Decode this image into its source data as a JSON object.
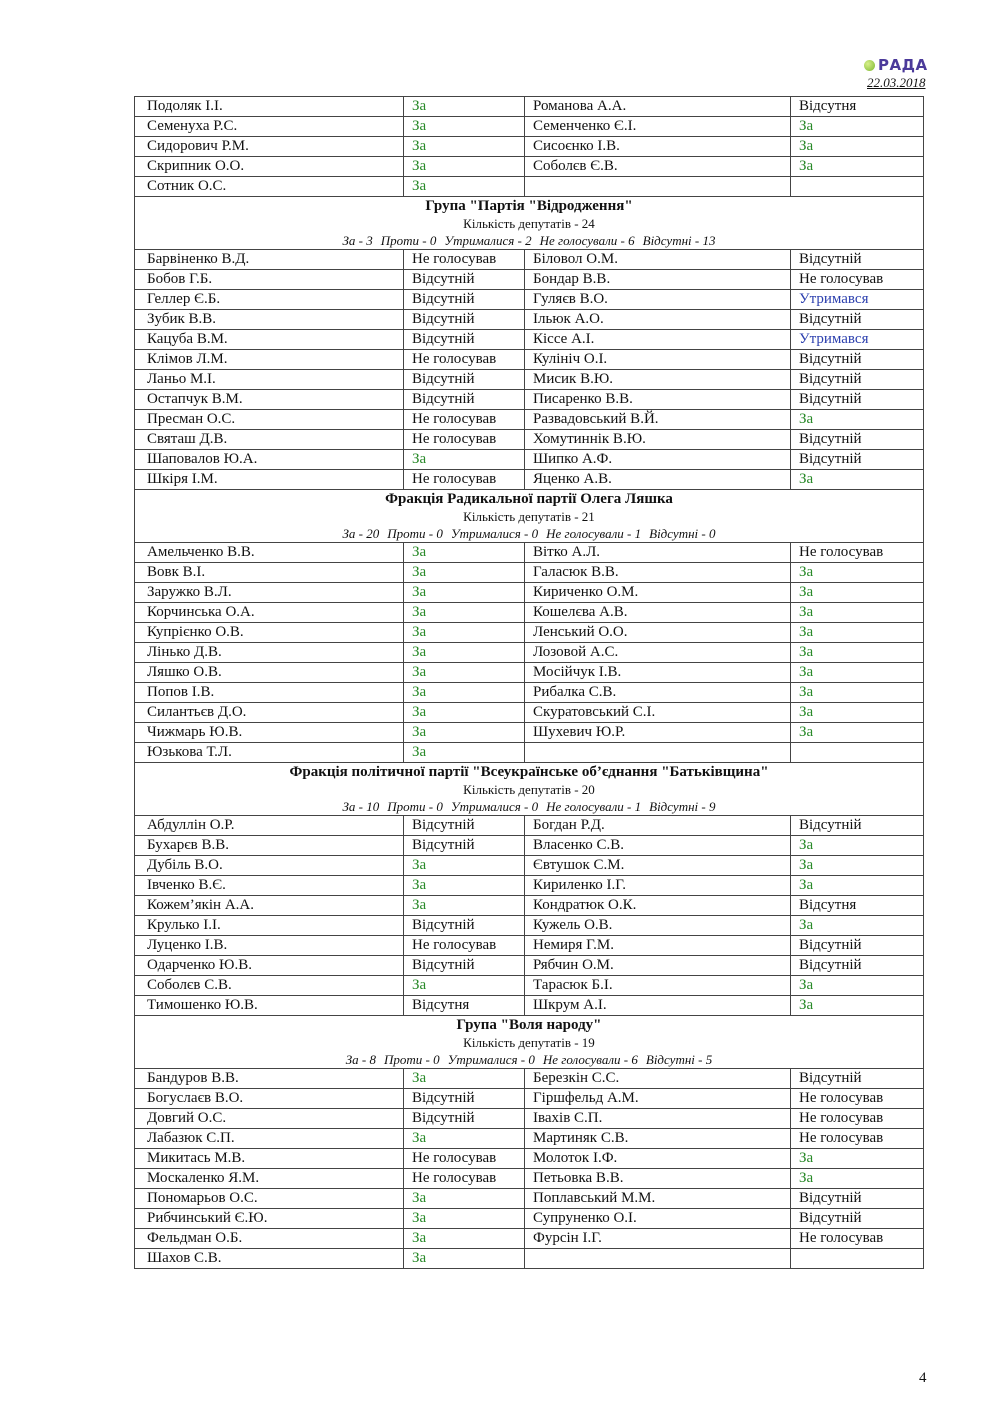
{
  "header": {
    "logo_text": "РАДА",
    "date": "22.03.2018"
  },
  "colors": {
    "za": "#2a8a2a",
    "abstained": "#2b3fae"
  },
  "page_number": "4",
  "sections": [
    {
      "rows": [
        [
          "Подоляк І.І.",
          "За",
          "Романова А.А.",
          "Відсутня"
        ],
        [
          "Семенуха Р.С.",
          "За",
          "Семенченко Є.І.",
          "За"
        ],
        [
          "Сидорович Р.М.",
          "За",
          "Сисоєнко І.В.",
          "За"
        ],
        [
          "Скрипник О.О.",
          "За",
          "Соболєв Є.В.",
          "За"
        ],
        [
          "Сотник О.С.",
          "За",
          "",
          ""
        ]
      ]
    },
    {
      "title": "Група \"Партія \"Відродження\"",
      "count": "Кількість депутатів - 24",
      "stats": [
        "За - 3",
        "Проти - 0",
        "Утрималися - 2",
        "Не голосували - 6",
        "Відсутні - 13"
      ],
      "rows": [
        [
          "Барвіненко В.Д.",
          "Не голосував",
          "Біловол О.М.",
          "Відсутній"
        ],
        [
          "Бобов Г.Б.",
          "Відсутній",
          "Бондар В.В.",
          "Не голосував"
        ],
        [
          "Геллер Є.Б.",
          "Відсутній",
          "Гуляєв В.О.",
          "Утримався"
        ],
        [
          "Зубик В.В.",
          "Відсутній",
          "Ільюк А.О.",
          "Відсутній"
        ],
        [
          "Кацуба В.М.",
          "Відсутній",
          "Кіссе А.І.",
          "Утримався"
        ],
        [
          "Клімов Л.М.",
          "Не голосував",
          "Кулініч О.І.",
          "Відсутній"
        ],
        [
          "Ланьо М.І.",
          "Відсутній",
          "Мисик В.Ю.",
          "Відсутній"
        ],
        [
          "Остапчук В.М.",
          "Відсутній",
          "Писаренко В.В.",
          "Відсутній"
        ],
        [
          "Пресман О.С.",
          "Не голосував",
          "Развадовський В.Й.",
          "За"
        ],
        [
          "Святаш Д.В.",
          "Не голосував",
          "Хомутиннік В.Ю.",
          "Відсутній"
        ],
        [
          "Шаповалов Ю.А.",
          "За",
          "Шипко А.Ф.",
          "Відсутній"
        ],
        [
          "Шкіря І.М.",
          "Не голосував",
          "Яценко А.В.",
          "За"
        ]
      ]
    },
    {
      "title": "Фракція Радикальної партії Олега Ляшка",
      "count": "Кількість депутатів - 21",
      "stats": [
        "За - 20",
        "Проти - 0",
        "Утрималися - 0",
        "Не голосували - 1",
        "Відсутні - 0"
      ],
      "rows": [
        [
          "Амельченко В.В.",
          "За",
          "Вітко А.Л.",
          "Не голосував"
        ],
        [
          "Вовк В.І.",
          "За",
          "Галасюк В.В.",
          "За"
        ],
        [
          "Заружко В.Л.",
          "За",
          "Кириченко О.М.",
          "За"
        ],
        [
          "Корчинська О.А.",
          "За",
          "Кошелєва А.В.",
          "За"
        ],
        [
          "Купрієнко О.В.",
          "За",
          "Ленський О.О.",
          "За"
        ],
        [
          "Лінько Д.В.",
          "За",
          "Лозовой А.С.",
          "За"
        ],
        [
          "Ляшко О.В.",
          "За",
          "Мосійчук І.В.",
          "За"
        ],
        [
          "Попов І.В.",
          "За",
          "Рибалка С.В.",
          "За"
        ],
        [
          "Силантьєв Д.О.",
          "За",
          "Скуратовський С.І.",
          "За"
        ],
        [
          "Чижмарь Ю.В.",
          "За",
          "Шухевич Ю.Р.",
          "За"
        ],
        [
          "Юзькова Т.Л.",
          "За",
          "",
          ""
        ]
      ]
    },
    {
      "title": "Фракція політичної партії \"Всеукраїнське об’єднання \"Батьківщина\"",
      "count": "Кількість депутатів - 20",
      "stats": [
        "За - 10",
        "Проти - 0",
        "Утрималися - 0",
        "Не голосували - 1",
        "Відсутні - 9"
      ],
      "rows": [
        [
          "Абдуллін О.Р.",
          "Відсутній",
          "Богдан Р.Д.",
          "Відсутній"
        ],
        [
          "Бухарєв В.В.",
          "Відсутній",
          "Власенко С.В.",
          "За"
        ],
        [
          "Дубіль В.О.",
          "За",
          "Євтушок С.М.",
          "За"
        ],
        [
          "Івченко В.Є.",
          "За",
          "Кириленко І.Г.",
          "За"
        ],
        [
          "Кожем’якін А.А.",
          "За",
          "Кондратюк О.К.",
          "Відсутня"
        ],
        [
          "Крулько І.І.",
          "Відсутній",
          "Кужель О.В.",
          "За"
        ],
        [
          "Луценко І.В.",
          "Не голосував",
          "Немиря Г.М.",
          "Відсутній"
        ],
        [
          "Одарченко Ю.В.",
          "Відсутній",
          "Рябчин О.М.",
          "Відсутній"
        ],
        [
          "Соболєв С.В.",
          "За",
          "Тарасюк Б.І.",
          "За"
        ],
        [
          "Тимошенко Ю.В.",
          "Відсутня",
          "Шкрум А.І.",
          "За"
        ]
      ]
    },
    {
      "title": "Група \"Воля народу\"",
      "count": "Кількість депутатів - 19",
      "stats": [
        "За - 8",
        "Проти - 0",
        "Утрималися - 0",
        "Не голосували - 6",
        "Відсутні - 5"
      ],
      "rows": [
        [
          "Бандуров В.В.",
          "За",
          "Березкін С.С.",
          "Відсутній"
        ],
        [
          "Богуслаєв В.О.",
          "Відсутній",
          "Гіршфельд А.М.",
          "Не голосував"
        ],
        [
          "Довгий О.С.",
          "Відсутній",
          "Івахів С.П.",
          "Не голосував"
        ],
        [
          "Лабазюк С.П.",
          "За",
          "Мартиняк С.В.",
          "Не голосував"
        ],
        [
          "Микитась М.В.",
          "Не голосував",
          "Молоток І.Ф.",
          "За"
        ],
        [
          "Москаленко Я.М.",
          "Не голосував",
          "Петьовка В.В.",
          "За"
        ],
        [
          "Пономарьов О.С.",
          "За",
          "Поплавський М.М.",
          "Відсутній"
        ],
        [
          "Рибчинський Є.Ю.",
          "За",
          "Супруненко О.І.",
          "Відсутній"
        ],
        [
          "Фельдман О.Б.",
          "За",
          "Фурсін І.Г.",
          "Не голосував"
        ],
        [
          "Шахов С.В.",
          "За",
          "",
          ""
        ]
      ]
    }
  ]
}
